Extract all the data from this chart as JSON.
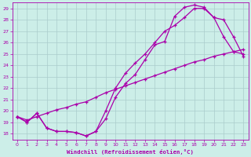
{
  "background_color": "#cceee8",
  "grid_color": "#aacccc",
  "line_color": "#aa00aa",
  "xlabel": "Windchill (Refroidissement éolien,°C)",
  "xlim": [
    -0.5,
    23.5
  ],
  "ylim": [
    17.5,
    29.5
  ],
  "yticks": [
    18,
    19,
    20,
    21,
    22,
    23,
    24,
    25,
    26,
    27,
    28,
    29
  ],
  "xticks": [
    0,
    1,
    2,
    3,
    4,
    5,
    6,
    7,
    8,
    9,
    10,
    11,
    12,
    13,
    14,
    15,
    16,
    17,
    18,
    19,
    20,
    21,
    22,
    23
  ],
  "line1_x": [
    0,
    1,
    2,
    3,
    4,
    5,
    6,
    7,
    8,
    9,
    10,
    11,
    12,
    13,
    14,
    15,
    16,
    17,
    18,
    19,
    20,
    21,
    22,
    23
  ],
  "line1_y": [
    19.5,
    19.0,
    19.8,
    18.5,
    18.2,
    18.2,
    18.1,
    17.8,
    18.2,
    19.3,
    21.2,
    22.4,
    23.2,
    24.5,
    25.8,
    26.1,
    28.3,
    29.1,
    29.3,
    29.1,
    28.2,
    26.5,
    25.2,
    25.0
  ],
  "line2_x": [
    0,
    1,
    2,
    3,
    4,
    5,
    6,
    7,
    8,
    9,
    10,
    11,
    12,
    13,
    14,
    15,
    16,
    17,
    18,
    19,
    20,
    21,
    22,
    23
  ],
  "line2_y": [
    19.5,
    19.0,
    19.8,
    18.5,
    18.2,
    18.2,
    18.1,
    17.8,
    18.2,
    20.0,
    22.0,
    23.3,
    24.2,
    25.0,
    26.0,
    27.0,
    27.5,
    28.2,
    29.0,
    29.0,
    28.2,
    28.0,
    26.5,
    24.8
  ],
  "line3_x": [
    0,
    1,
    2,
    3,
    4,
    5,
    6,
    7,
    8,
    9,
    10,
    11,
    12,
    13,
    14,
    15,
    16,
    17,
    18,
    19,
    20,
    21,
    22,
    23
  ],
  "line3_y": [
    19.5,
    19.2,
    19.5,
    19.8,
    20.1,
    20.3,
    20.6,
    20.8,
    21.2,
    21.6,
    21.9,
    22.2,
    22.5,
    22.8,
    23.1,
    23.4,
    23.7,
    24.0,
    24.3,
    24.5,
    24.8,
    25.0,
    25.2,
    25.4
  ]
}
